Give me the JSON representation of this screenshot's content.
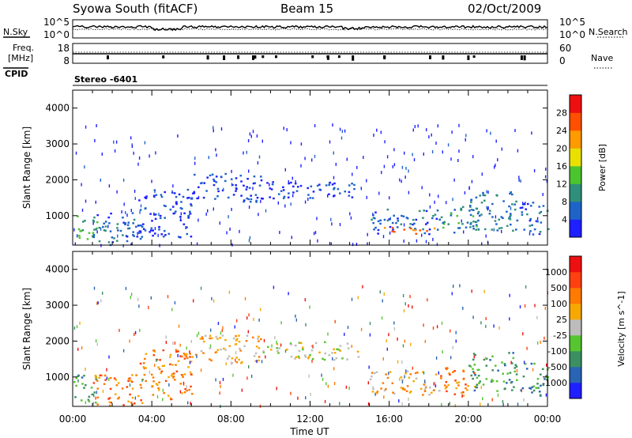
{
  "header": {
    "station": "Syowa South (fitACF)",
    "beam": "Beam 15",
    "date": "02/Oct/2009"
  },
  "noise_panel": {
    "left_label": "N.Sky",
    "right_label": "N.Search",
    "left_ticks": [
      "10^5",
      "10^0"
    ],
    "right_ticks": [
      "10^5",
      "10^0"
    ]
  },
  "freq_panel": {
    "left_label_line1": "Freq.",
    "left_label_line2": "[MHz]",
    "right_label": "Nave",
    "left_ticks": [
      "18",
      "8"
    ],
    "right_ticks": [
      "60",
      "0"
    ]
  },
  "cpid": {
    "label": "CPID",
    "value": "Stereo -6401"
  },
  "chart_data": [
    {
      "type": "heatmap",
      "quantity": "power",
      "ylabel": "Slant Range [km]",
      "xlabel": "",
      "xlim": [
        0,
        24
      ],
      "ylim": [
        180,
        4500
      ],
      "yticks": [
        1000,
        2000,
        3000,
        4000
      ],
      "colorbar": {
        "label": "Power [dB]",
        "range": [
          0,
          32
        ],
        "ticks": [
          4,
          8,
          12,
          16,
          20,
          24,
          28
        ],
        "colors": [
          "#1f1fff",
          "#1e64c8",
          "#2f8f7a",
          "#4cc42e",
          "#e9e000",
          "#ff9a00",
          "#ff5000",
          "#ee1010"
        ]
      },
      "regions": [
        {
          "t": [
            0.0,
            1.2
          ],
          "r": [
            300,
            1100
          ],
          "level": 12
        },
        {
          "t": [
            1.0,
            3.5
          ],
          "r": [
            200,
            1100
          ],
          "level": 6
        },
        {
          "t": [
            3.3,
            6.0
          ],
          "r": [
            400,
            1800
          ],
          "level": 4
        },
        {
          "t": [
            6.0,
            9.5
          ],
          "r": [
            1400,
            2200
          ],
          "level": 4
        },
        {
          "t": [
            9.5,
            14.5
          ],
          "r": [
            1500,
            2000
          ],
          "level": 4
        },
        {
          "t": [
            15.0,
            18.5
          ],
          "r": [
            500,
            1200
          ],
          "level": 6
        },
        {
          "t": [
            15.5,
            18.5
          ],
          "r": [
            520,
            700
          ],
          "level": 24
        },
        {
          "t": [
            18.5,
            20.5
          ],
          "r": [
            500,
            1300
          ],
          "level": 10
        },
        {
          "t": [
            20.0,
            22.5
          ],
          "r": [
            600,
            1700
          ],
          "level": 8
        },
        {
          "t": [
            22.5,
            24.0
          ],
          "r": [
            500,
            1400
          ],
          "level": 6
        }
      ]
    },
    {
      "type": "heatmap",
      "quantity": "velocity",
      "ylabel": "Slant Range [km]",
      "xlabel": "Time UT",
      "xlim": [
        0,
        24
      ],
      "ylim": [
        180,
        4500
      ],
      "yticks": [
        1000,
        2000,
        3000,
        4000
      ],
      "xticks": [
        "00:00",
        "04:00",
        "08:00",
        "12:00",
        "16:00",
        "20:00",
        "00:00"
      ],
      "colorbar": {
        "label": "Velocity [m s^-1]",
        "ticks": [
          "1000",
          "500",
          "100",
          "25",
          "-25",
          "-100",
          "-500",
          "-1000"
        ],
        "colors": [
          "#1f1fff",
          "#2a64b4",
          "#3a9060",
          "#55c530",
          "#bdbdbd",
          "#f7a800",
          "#ff7a00",
          "#ff4010",
          "#ee1010"
        ]
      },
      "regions": [
        {
          "t": [
            0.0,
            1.2
          ],
          "r": [
            300,
            1100
          ],
          "level": 2
        },
        {
          "t": [
            1.0,
            3.5
          ],
          "r": [
            200,
            1100
          ],
          "level": 6
        },
        {
          "t": [
            3.3,
            6.0
          ],
          "r": [
            400,
            1800
          ],
          "level": 6
        },
        {
          "t": [
            6.0,
            9.5
          ],
          "r": [
            1400,
            2200
          ],
          "level": 5
        },
        {
          "t": [
            9.5,
            14.5
          ],
          "r": [
            1500,
            2000
          ],
          "level": 4
        },
        {
          "t": [
            15.0,
            18.5
          ],
          "r": [
            500,
            1200
          ],
          "level": 5
        },
        {
          "t": [
            18.5,
            20.5
          ],
          "r": [
            500,
            1300
          ],
          "level": 6
        },
        {
          "t": [
            20.0,
            22.5
          ],
          "r": [
            600,
            1700
          ],
          "level": 2
        },
        {
          "t": [
            22.5,
            24.0
          ],
          "r": [
            500,
            1400
          ],
          "level": 2
        }
      ]
    }
  ]
}
